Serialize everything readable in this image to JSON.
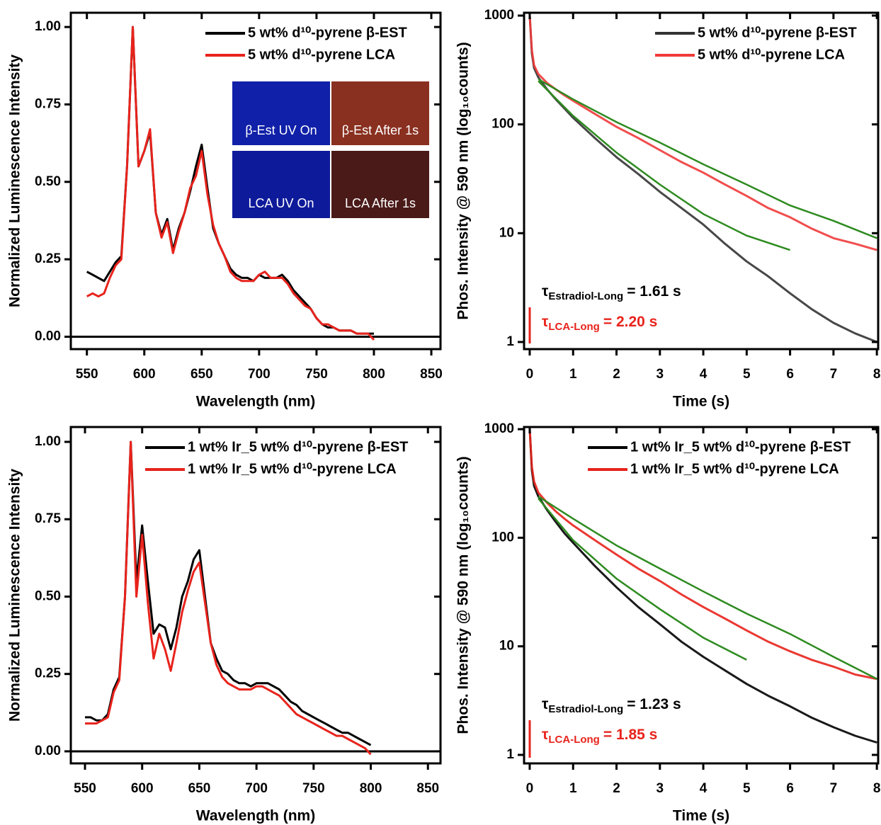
{
  "chart_data": [
    {
      "type": "line",
      "xlabel": "Wavelength (nm)",
      "ylabel": "Normalized Luminescence Intensity",
      "xlim": [
        536,
        858
      ],
      "ylim": [
        -0.04,
        1.046
      ],
      "xticks": [
        550,
        600,
        650,
        700,
        750,
        800,
        850
      ],
      "yticks": [
        {
          "value": 0,
          "label": "0.00"
        },
        {
          "value": 0.25,
          "label": "0.25"
        },
        {
          "value": 0.5,
          "label": "0.50"
        },
        {
          "value": 0.75,
          "label": "0.75"
        },
        {
          "value": 1,
          "label": "1.00"
        }
      ],
      "legend": "upper right",
      "inset_labels": [
        "β-Est UV On",
        "β-Est After 1s",
        "LCA UV On",
        "LCA After 1s"
      ],
      "x": [
        550,
        555,
        560,
        565,
        570,
        575,
        580,
        585,
        590,
        595,
        600,
        605,
        610,
        615,
        620,
        625,
        630,
        635,
        640,
        645,
        650,
        655,
        660,
        665,
        670,
        675,
        680,
        685,
        690,
        695,
        700,
        705,
        710,
        715,
        720,
        725,
        730,
        735,
        740,
        745,
        750,
        755,
        760,
        765,
        770,
        775,
        780,
        785,
        790,
        795,
        800
      ],
      "series": [
        {
          "name": "5 wt% d¹⁰-pyrene β-EST",
          "color": "#000000",
          "values": [
            0.21,
            0.2,
            0.19,
            0.18,
            0.21,
            0.24,
            0.26,
            0.55,
            1.0,
            0.55,
            0.6,
            0.66,
            0.4,
            0.33,
            0.38,
            0.28,
            0.35,
            0.4,
            0.47,
            0.55,
            0.62,
            0.48,
            0.35,
            0.3,
            0.26,
            0.22,
            0.2,
            0.19,
            0.19,
            0.18,
            0.2,
            0.19,
            0.19,
            0.19,
            0.2,
            0.18,
            0.15,
            0.13,
            0.11,
            0.09,
            0.06,
            0.04,
            0.03,
            0.03,
            0.02,
            0.02,
            0.02,
            0.01,
            0.01,
            0.01,
            0.01
          ]
        },
        {
          "name": "5 wt% d¹⁰-pyrene LCA",
          "color": "#e8231c",
          "values": [
            0.13,
            0.14,
            0.13,
            0.14,
            0.19,
            0.23,
            0.25,
            0.55,
            1.0,
            0.55,
            0.6,
            0.67,
            0.4,
            0.32,
            0.37,
            0.27,
            0.34,
            0.4,
            0.48,
            0.52,
            0.6,
            0.46,
            0.36,
            0.3,
            0.26,
            0.21,
            0.19,
            0.18,
            0.18,
            0.18,
            0.2,
            0.21,
            0.19,
            0.19,
            0.19,
            0.17,
            0.14,
            0.12,
            0.1,
            0.09,
            0.06,
            0.04,
            0.04,
            0.03,
            0.02,
            0.02,
            0.02,
            0.01,
            0.01,
            0.01,
            -0.01
          ]
        }
      ]
    },
    {
      "type": "line",
      "log_y": true,
      "xlabel": "Time (s)",
      "ylabel": "Phos. Intensity @ 590 nm (log₁₀counts)",
      "xlim": [
        -0.13,
        8.03
      ],
      "ylim": [
        0.86,
        1062
      ],
      "xticks": [
        0,
        1,
        2,
        3,
        4,
        5,
        6,
        7,
        8
      ],
      "yticks": [
        1,
        10,
        100,
        1000
      ],
      "legend": "upper right",
      "annotations": [
        {
          "symbol": "τ",
          "subscript": "Estradiol-Long",
          "text": "= 1.61 s",
          "color": "#000000"
        },
        {
          "symbol": "τ",
          "subscript": "LCA-Long",
          "text": "= 2.20 s",
          "color": "#e8231c"
        }
      ],
      "x": [
        0,
        0.05,
        0.1,
        0.2,
        0.4,
        0.6,
        0.8,
        1,
        1.5,
        2,
        2.5,
        3,
        3.5,
        4,
        4.5,
        5,
        5.5,
        6,
        6.5,
        7,
        7.5,
        8
      ],
      "series": [
        {
          "name": "5 wt% d¹⁰-pyrene β-EST",
          "color": "#333333",
          "values": [
            1000,
            450,
            330,
            270,
            210,
            170,
            140,
            115,
            75,
            50,
            35,
            24,
            17,
            12,
            8,
            5.5,
            4,
            2.8,
            2,
            1.5,
            1.2,
            1
          ]
        },
        {
          "name": "5 wt% d¹⁰-pyrene LCA",
          "color": "#f03a3a",
          "values": [
            1000,
            480,
            350,
            290,
            240,
            210,
            185,
            165,
            125,
            95,
            75,
            58,
            45,
            36,
            28,
            22,
            17,
            14,
            11,
            9,
            8,
            7
          ]
        }
      ],
      "fits": [
        {
          "color": "#2e8b20",
          "x": [
            0.2,
            1,
            2,
            3,
            4,
            5,
            6
          ],
          "values": [
            250,
            120,
            55,
            28,
            15,
            9.5,
            7
          ]
        },
        {
          "color": "#2e8b20",
          "x": [
            0.2,
            1,
            2,
            3,
            4,
            5,
            6,
            7,
            8
          ],
          "values": [
            260,
            170,
            105,
            68,
            43,
            28,
            18,
            13,
            9
          ]
        }
      ]
    },
    {
      "type": "line",
      "xlabel": "Wavelength (nm)",
      "ylabel": "Normalized Luminescence Intensity",
      "xlim": [
        537.6,
        861
      ],
      "ylim": [
        -0.039,
        1.048
      ],
      "xticks": [
        550,
        600,
        650,
        700,
        750,
        800,
        850
      ],
      "yticks": [
        {
          "value": 0,
          "label": "0.00"
        },
        {
          "value": 0.25,
          "label": "0.25"
        },
        {
          "value": 0.5,
          "label": "0.50"
        },
        {
          "value": 0.75,
          "label": "0.75"
        },
        {
          "value": 1,
          "label": "1.00"
        }
      ],
      "legend": "upper right",
      "x": [
        550,
        555,
        560,
        565,
        570,
        575,
        580,
        585,
        590,
        595,
        600,
        605,
        610,
        615,
        620,
        625,
        630,
        635,
        640,
        645,
        650,
        655,
        660,
        665,
        670,
        675,
        680,
        685,
        690,
        695,
        700,
        705,
        710,
        715,
        720,
        725,
        730,
        735,
        740,
        745,
        750,
        755,
        760,
        765,
        770,
        775,
        780,
        785,
        790,
        795,
        800
      ],
      "series": [
        {
          "name": "1 wt% Ir_5 wt% d¹⁰-pyrene β-EST",
          "color": "#000000",
          "values": [
            0.11,
            0.11,
            0.1,
            0.1,
            0.12,
            0.2,
            0.24,
            0.5,
            1.0,
            0.55,
            0.73,
            0.55,
            0.38,
            0.41,
            0.4,
            0.33,
            0.4,
            0.5,
            0.55,
            0.62,
            0.65,
            0.5,
            0.35,
            0.3,
            0.26,
            0.25,
            0.23,
            0.22,
            0.22,
            0.21,
            0.22,
            0.22,
            0.22,
            0.21,
            0.2,
            0.18,
            0.16,
            0.15,
            0.13,
            0.12,
            0.11,
            0.1,
            0.09,
            0.08,
            0.07,
            0.06,
            0.06,
            0.05,
            0.04,
            0.03,
            0.02
          ]
        },
        {
          "name": "1 wt% Ir_5 wt% d¹⁰-pyrene LCA",
          "color": "#e8231c",
          "values": [
            0.09,
            0.09,
            0.09,
            0.1,
            0.11,
            0.19,
            0.23,
            0.5,
            1.0,
            0.5,
            0.7,
            0.48,
            0.3,
            0.38,
            0.33,
            0.26,
            0.35,
            0.45,
            0.52,
            0.58,
            0.61,
            0.48,
            0.35,
            0.28,
            0.24,
            0.22,
            0.21,
            0.2,
            0.2,
            0.2,
            0.21,
            0.21,
            0.2,
            0.19,
            0.18,
            0.16,
            0.14,
            0.12,
            0.11,
            0.1,
            0.09,
            0.08,
            0.07,
            0.06,
            0.05,
            0.05,
            0.04,
            0.03,
            0.02,
            0.01,
            -0.01
          ]
        }
      ]
    },
    {
      "type": "line",
      "log_y": true,
      "xlabel": "Time (s)",
      "ylabel": "Phos. Intensity @ 590 nm (log₁₀counts)",
      "xlim": [
        -0.13,
        8.03
      ],
      "ylim": [
        0.835,
        1047
      ],
      "xticks": [
        0,
        1,
        2,
        3,
        4,
        5,
        6,
        7,
        8
      ],
      "yticks": [
        1,
        10,
        100,
        1000
      ],
      "legend": "upper right",
      "annotations": [
        {
          "symbol": "τ",
          "subscript": "Estradiol-Long",
          "text": "= 1.23 s",
          "color": "#000000"
        },
        {
          "symbol": "τ",
          "subscript": "LCA-Long",
          "text": "= 1.85 s",
          "color": "#e8231c"
        }
      ],
      "x": [
        0,
        0.05,
        0.1,
        0.2,
        0.4,
        0.6,
        0.8,
        1,
        1.5,
        2,
        2.5,
        3,
        3.5,
        4,
        4.5,
        5,
        5.5,
        6,
        6.5,
        7,
        7.5,
        8
      ],
      "series": [
        {
          "name": "1 wt% Ir_5 wt% d¹⁰-pyrene β-EST",
          "color": "#000000",
          "values": [
            1000,
            420,
            300,
            240,
            180,
            140,
            110,
            90,
            55,
            35,
            23,
            16,
            11,
            8,
            6,
            4.5,
            3.5,
            2.8,
            2.2,
            1.8,
            1.5,
            1.3
          ]
        },
        {
          "name": "1 wt% Ir_5 wt% d¹⁰-pyrene LCA",
          "color": "#e8231c",
          "values": [
            1000,
            450,
            330,
            260,
            210,
            175,
            150,
            130,
            95,
            70,
            52,
            40,
            30,
            23,
            18,
            14,
            11,
            9,
            7.5,
            6.5,
            5.5,
            5
          ]
        }
      ],
      "fits": [
        {
          "color": "#2e8b20",
          "x": [
            0.2,
            1,
            2,
            3,
            4,
            5
          ],
          "values": [
            230,
            95,
            42,
            22,
            12,
            7.5
          ]
        },
        {
          "color": "#2e8b20",
          "x": [
            0.2,
            1,
            2,
            3,
            4,
            5,
            6,
            7,
            8
          ],
          "values": [
            240,
            150,
            85,
            52,
            32,
            20,
            13,
            8,
            5
          ]
        }
      ]
    }
  ]
}
